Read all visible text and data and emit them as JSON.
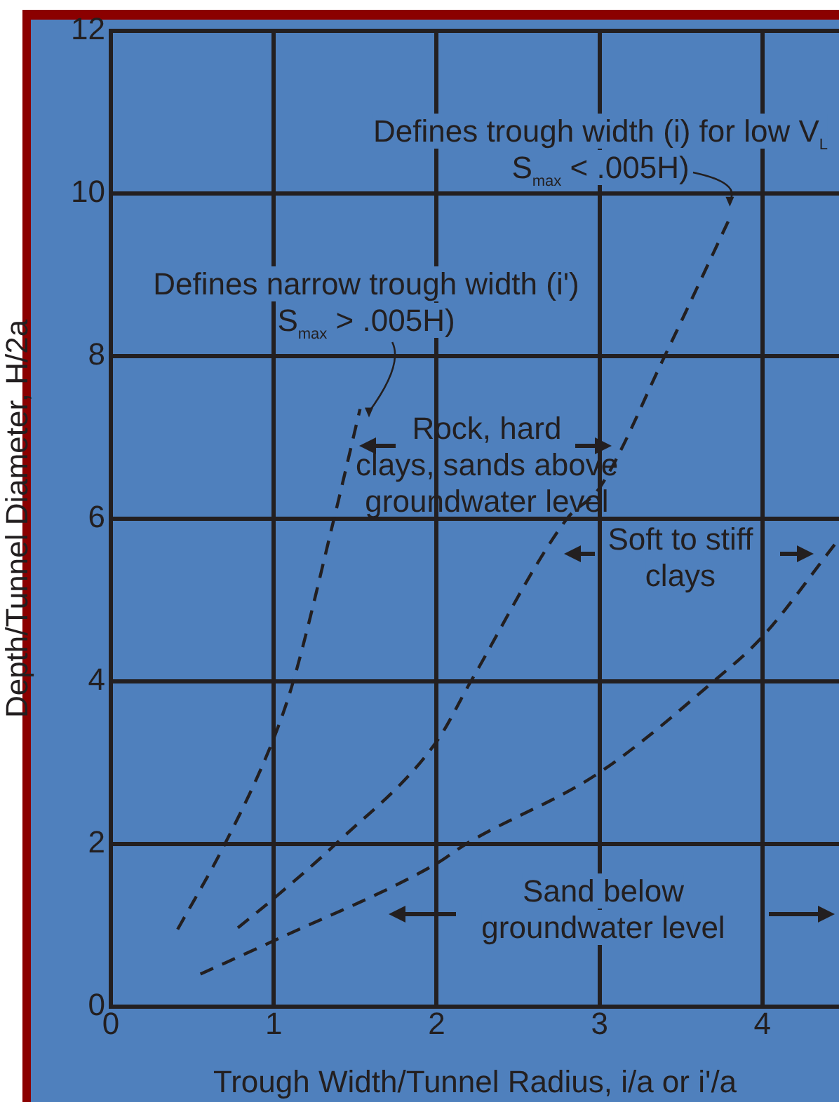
{
  "chart_data": {
    "type": "line",
    "xlabel": "Trough Width/Tunnel Radius, i/a or i'/a",
    "ylabel": "Depth/Tunnel Diameter, H/2a",
    "xlim": [
      0,
      4.47
    ],
    "xticks": [
      0,
      1,
      2,
      3,
      4
    ],
    "ylim": [
      0,
      12
    ],
    "yticks": [
      0,
      2,
      4,
      6,
      8,
      10,
      12
    ],
    "grid": true,
    "legend": false,
    "marker": "none",
    "line_style": "dashed",
    "series": [
      {
        "color": "#231f20",
        "x": [
          0.41,
          0.7,
          1.0,
          1.12,
          1.37,
          1.53
        ],
        "values": [
          0.95,
          2.0,
          3.3,
          4.0,
          6.0,
          7.35
        ]
      },
      {
        "color": "#231f20",
        "x": [
          0.78,
          1.0,
          1.38,
          2.0,
          2.21,
          2.8,
          3.0,
          3.4,
          3.8
        ],
        "values": [
          0.97,
          1.33,
          2.0,
          3.26,
          4.0,
          6.0,
          6.38,
          8.0,
          9.7
        ]
      },
      {
        "color": "#231f20",
        "x": [
          0.55,
          1.0,
          2.0,
          2.18,
          3.0,
          3.7,
          4.0,
          4.45
        ],
        "values": [
          0.4,
          0.81,
          1.76,
          2.0,
          2.88,
          4.0,
          4.55,
          5.7
        ]
      }
    ],
    "annotations": [
      "Defines trough width (i) for low V$_{L}$\nS$_{max}$ < .005H)",
      "Defines narrow trough width (i')\nS$_{max}$ > .005H)",
      "Rock, hard\nclays, sands above\ngroundwater level",
      "Soft to stiff\nclays",
      "Sand below\ngroundwater level"
    ]
  }
}
